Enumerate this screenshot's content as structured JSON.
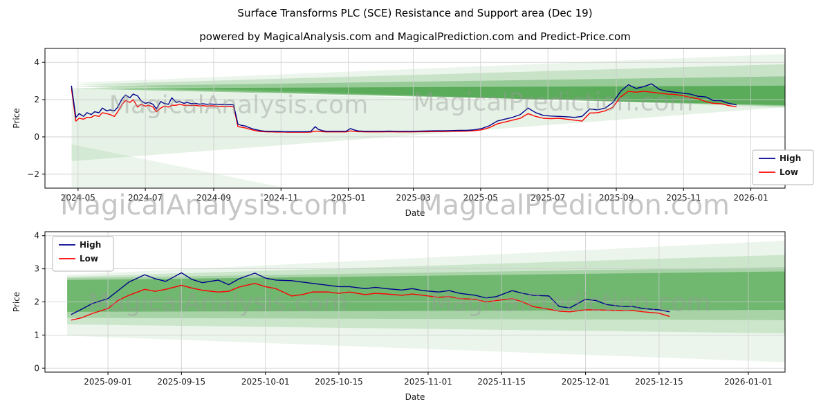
{
  "page": {
    "title": "Surface Transforms PLC (SCE) Resistance and Support area (Dec 19)",
    "subtitle": "powered by MagicalAnalysis.com and MagicalPrediction.com and Predict-Price.com"
  },
  "watermarks": {
    "analysis": "MagicalAnalysis.com",
    "prediction": "MagicalPrediction.com"
  },
  "colors": {
    "high": "#00008b",
    "low": "#ff0000",
    "band": "#008000",
    "grid": "#cccccc",
    "axis": "#000000",
    "tick_text": "#1a1a1a"
  },
  "chart_data": [
    {
      "type": "line",
      "xlabel": "Date",
      "ylabel": "Price",
      "grid": true,
      "x_domain": [
        "2024-04-01",
        "2026-02-01"
      ],
      "ylim": [
        -2.75,
        4.75
      ],
      "y_ticks": [
        -2,
        0,
        2,
        4
      ],
      "x_ticks": [
        {
          "date": "2024-05-01",
          "label": "2024-05"
        },
        {
          "date": "2024-07-01",
          "label": "2024-07"
        },
        {
          "date": "2024-09-01",
          "label": "2024-09"
        },
        {
          "date": "2024-11-01",
          "label": "2024-11"
        },
        {
          "date": "2025-01-01",
          "label": "2025-01"
        },
        {
          "date": "2025-03-01",
          "label": "2025-03"
        },
        {
          "date": "2025-05-01",
          "label": "2025-05"
        },
        {
          "date": "2025-07-01",
          "label": "2025-07"
        },
        {
          "date": "2025-09-01",
          "label": "2025-09"
        },
        {
          "date": "2025-11-01",
          "label": "2025-11"
        },
        {
          "date": "2026-01-01",
          "label": "2026-01"
        }
      ],
      "legend": {
        "position": "center-right",
        "entries": [
          {
            "label": "High",
            "key": "high"
          },
          {
            "label": "Low",
            "key": "low"
          }
        ]
      },
      "series_names": [
        "High",
        "Low"
      ],
      "points": [
        [
          "2024-04-25",
          2.75,
          2.6
        ],
        [
          "2024-04-29",
          1.05,
          0.85
        ],
        [
          "2024-05-02",
          1.25,
          1.0
        ],
        [
          "2024-05-06",
          1.1,
          0.95
        ],
        [
          "2024-05-09",
          1.3,
          1.05
        ],
        [
          "2024-05-13",
          1.2,
          1.05
        ],
        [
          "2024-05-16",
          1.35,
          1.15
        ],
        [
          "2024-05-20",
          1.3,
          1.1
        ],
        [
          "2024-05-23",
          1.55,
          1.3
        ],
        [
          "2024-05-27",
          1.4,
          1.25
        ],
        [
          "2024-05-30",
          1.45,
          1.2
        ],
        [
          "2024-06-03",
          1.4,
          1.1
        ],
        [
          "2024-06-06",
          1.6,
          1.35
        ],
        [
          "2024-06-10",
          2.05,
          1.75
        ],
        [
          "2024-06-13",
          2.25,
          1.95
        ],
        [
          "2024-06-17",
          2.1,
          1.85
        ],
        [
          "2024-06-20",
          2.3,
          2.0
        ],
        [
          "2024-06-24",
          2.2,
          1.6
        ],
        [
          "2024-06-27",
          1.95,
          1.75
        ],
        [
          "2024-07-01",
          1.8,
          1.65
        ],
        [
          "2024-07-04",
          1.85,
          1.7
        ],
        [
          "2024-07-08",
          1.75,
          1.6
        ],
        [
          "2024-07-11",
          1.5,
          1.35
        ],
        [
          "2024-07-15",
          1.9,
          1.55
        ],
        [
          "2024-07-18",
          1.8,
          1.65
        ],
        [
          "2024-07-22",
          1.75,
          1.6
        ],
        [
          "2024-07-25",
          2.1,
          1.7
        ],
        [
          "2024-07-29",
          1.85,
          1.7
        ],
        [
          "2024-08-01",
          1.9,
          1.75
        ],
        [
          "2024-08-05",
          1.8,
          1.7
        ],
        [
          "2024-08-08",
          1.85,
          1.7
        ],
        [
          "2024-08-12",
          1.78,
          1.68
        ],
        [
          "2024-08-15",
          1.8,
          1.7
        ],
        [
          "2024-08-19",
          1.76,
          1.66
        ],
        [
          "2024-08-22",
          1.78,
          1.68
        ],
        [
          "2024-08-26",
          1.75,
          1.65
        ],
        [
          "2024-08-29",
          1.77,
          1.67
        ],
        [
          "2024-09-02",
          1.75,
          1.66
        ],
        [
          "2024-09-05",
          1.73,
          1.64
        ],
        [
          "2024-09-09",
          1.75,
          1.65
        ],
        [
          "2024-09-12",
          1.72,
          1.63
        ],
        [
          "2024-09-16",
          1.73,
          1.64
        ],
        [
          "2024-09-19",
          1.72,
          1.63
        ],
        [
          "2024-09-23",
          0.68,
          0.55
        ],
        [
          "2024-09-26",
          0.62,
          0.52
        ],
        [
          "2024-09-30",
          0.58,
          0.48
        ],
        [
          "2024-10-03",
          0.5,
          0.42
        ],
        [
          "2024-10-07",
          0.42,
          0.36
        ],
        [
          "2024-10-10",
          0.38,
          0.32
        ],
        [
          "2024-10-14",
          0.33,
          0.29
        ],
        [
          "2024-10-17",
          0.31,
          0.28
        ],
        [
          "2024-10-21",
          0.3,
          0.27
        ],
        [
          "2024-10-24",
          0.3,
          0.27
        ],
        [
          "2024-10-28",
          0.29,
          0.26
        ],
        [
          "2024-10-31",
          0.29,
          0.26
        ],
        [
          "2024-11-04",
          0.28,
          0.26
        ],
        [
          "2024-11-07",
          0.28,
          0.25
        ],
        [
          "2024-11-11",
          0.28,
          0.25
        ],
        [
          "2024-11-14",
          0.28,
          0.25
        ],
        [
          "2024-11-18",
          0.28,
          0.25
        ],
        [
          "2024-11-21",
          0.28,
          0.25
        ],
        [
          "2024-11-25",
          0.28,
          0.25
        ],
        [
          "2024-11-28",
          0.29,
          0.26
        ],
        [
          "2024-12-02",
          0.55,
          0.3
        ],
        [
          "2024-12-05",
          0.4,
          0.3
        ],
        [
          "2024-12-09",
          0.33,
          0.28
        ],
        [
          "2024-12-12",
          0.3,
          0.27
        ],
        [
          "2024-12-16",
          0.3,
          0.27
        ],
        [
          "2024-12-19",
          0.3,
          0.27
        ],
        [
          "2024-12-23",
          0.3,
          0.27
        ],
        [
          "2024-12-27",
          0.3,
          0.27
        ],
        [
          "2024-12-30",
          0.3,
          0.27
        ],
        [
          "2025-01-03",
          0.45,
          0.32
        ],
        [
          "2025-01-06",
          0.38,
          0.3
        ],
        [
          "2025-01-10",
          0.32,
          0.28
        ],
        [
          "2025-01-13",
          0.31,
          0.28
        ],
        [
          "2025-01-17",
          0.3,
          0.27
        ],
        [
          "2025-01-24",
          0.3,
          0.27
        ],
        [
          "2025-01-31",
          0.3,
          0.27
        ],
        [
          "2025-02-07",
          0.31,
          0.28
        ],
        [
          "2025-02-14",
          0.3,
          0.27
        ],
        [
          "2025-02-21",
          0.3,
          0.27
        ],
        [
          "2025-02-28",
          0.3,
          0.27
        ],
        [
          "2025-03-07",
          0.31,
          0.28
        ],
        [
          "2025-03-14",
          0.32,
          0.28
        ],
        [
          "2025-03-21",
          0.33,
          0.29
        ],
        [
          "2025-03-28",
          0.33,
          0.29
        ],
        [
          "2025-04-04",
          0.34,
          0.3
        ],
        [
          "2025-04-11",
          0.35,
          0.3
        ],
        [
          "2025-04-18",
          0.35,
          0.31
        ],
        [
          "2025-04-25",
          0.38,
          0.33
        ],
        [
          "2025-05-02",
          0.45,
          0.38
        ],
        [
          "2025-05-09",
          0.6,
          0.5
        ],
        [
          "2025-05-16",
          0.85,
          0.7
        ],
        [
          "2025-05-23",
          0.95,
          0.8
        ],
        [
          "2025-05-30",
          1.05,
          0.9
        ],
        [
          "2025-06-06",
          1.2,
          1.0
        ],
        [
          "2025-06-13",
          1.55,
          1.25
        ],
        [
          "2025-06-20",
          1.3,
          1.1
        ],
        [
          "2025-06-27",
          1.15,
          1.0
        ],
        [
          "2025-07-04",
          1.12,
          0.98
        ],
        [
          "2025-07-11",
          1.1,
          1.0
        ],
        [
          "2025-07-18",
          1.08,
          0.95
        ],
        [
          "2025-07-25",
          1.05,
          0.9
        ],
        [
          "2025-08-01",
          1.1,
          0.85
        ],
        [
          "2025-08-08",
          1.5,
          1.28
        ],
        [
          "2025-08-15",
          1.45,
          1.3
        ],
        [
          "2025-08-22",
          1.55,
          1.4
        ],
        [
          "2025-08-29",
          1.85,
          1.6
        ],
        [
          "2025-09-05",
          2.45,
          2.15
        ],
        [
          "2025-09-12",
          2.8,
          2.45
        ],
        [
          "2025-09-19",
          2.6,
          2.4
        ],
        [
          "2025-09-26",
          2.7,
          2.45
        ],
        [
          "2025-10-03",
          2.85,
          2.4
        ],
        [
          "2025-10-10",
          2.55,
          2.35
        ],
        [
          "2025-10-17",
          2.45,
          2.3
        ],
        [
          "2025-10-24",
          2.4,
          2.28
        ],
        [
          "2025-10-31",
          2.35,
          2.22
        ],
        [
          "2025-11-07",
          2.3,
          2.12
        ],
        [
          "2025-11-14",
          2.18,
          2.05
        ],
        [
          "2025-11-21",
          2.15,
          1.9
        ],
        [
          "2025-11-28",
          1.95,
          1.8
        ],
        [
          "2025-12-05",
          1.95,
          1.78
        ],
        [
          "2025-12-12",
          1.8,
          1.68
        ],
        [
          "2025-12-19",
          1.72,
          1.62
        ]
      ],
      "bands": [
        {
          "alpha": 0.08,
          "points": [
            [
              0.036,
              2.9
            ],
            [
              1,
              4.45
            ],
            [
              1,
              1.55
            ]
          ]
        },
        {
          "alpha": 0.15,
          "points": [
            [
              0.036,
              2.8
            ],
            [
              1,
              3.9
            ],
            [
              1,
              1.6
            ]
          ]
        },
        {
          "alpha": 0.25,
          "points": [
            [
              0.036,
              2.7
            ],
            [
              1,
              3.25
            ],
            [
              1,
              1.65
            ]
          ]
        },
        {
          "alpha": 0.4,
          "points": [
            [
              0.036,
              2.6
            ],
            [
              1,
              2.75
            ],
            [
              1,
              1.7
            ]
          ]
        },
        {
          "alpha": 0.1,
          "points": [
            [
              0.036,
              2.6
            ],
            [
              1,
              1.6
            ],
            [
              0.036,
              -1.3
            ]
          ]
        },
        {
          "alpha": 0.08,
          "points": [
            [
              0.036,
              -0.4
            ],
            [
              0.32,
              -2.7
            ],
            [
              0.036,
              -2.7
            ]
          ]
        }
      ]
    },
    {
      "type": "line",
      "xlabel": "Date",
      "ylabel": "Price",
      "grid": true,
      "x_domain": [
        "2025-08-20",
        "2026-01-08"
      ],
      "ylim": [
        -0.12,
        4.12
      ],
      "y_ticks": [
        0,
        1,
        2,
        3,
        4
      ],
      "x_ticks": [
        {
          "date": "2025-09-01",
          "label": "2025-09-01"
        },
        {
          "date": "2025-09-15",
          "label": "2025-09-15"
        },
        {
          "date": "2025-10-01",
          "label": "2025-10-01"
        },
        {
          "date": "2025-10-15",
          "label": "2025-10-15"
        },
        {
          "date": "2025-11-01",
          "label": "2025-11-01"
        },
        {
          "date": "2025-11-15",
          "label": "2025-11-15"
        },
        {
          "date": "2025-12-01",
          "label": "2025-12-01"
        },
        {
          "date": "2025-12-15",
          "label": "2025-12-15"
        },
        {
          "date": "2026-01-01",
          "label": "2026-01-01"
        }
      ],
      "legend": {
        "position": "upper-left",
        "entries": [
          {
            "label": "High",
            "key": "high"
          },
          {
            "label": "Low",
            "key": "low"
          }
        ]
      },
      "series_names": [
        "High",
        "Low"
      ],
      "points": [
        [
          "2025-08-25",
          1.62,
          1.45
        ],
        [
          "2025-08-27",
          1.78,
          1.52
        ],
        [
          "2025-08-29",
          1.95,
          1.65
        ],
        [
          "2025-09-01",
          2.1,
          1.8
        ],
        [
          "2025-09-03",
          2.35,
          2.05
        ],
        [
          "2025-09-05",
          2.6,
          2.2
        ],
        [
          "2025-09-08",
          2.82,
          2.38
        ],
        [
          "2025-09-10",
          2.7,
          2.32
        ],
        [
          "2025-09-12",
          2.62,
          2.38
        ],
        [
          "2025-09-15",
          2.88,
          2.5
        ],
        [
          "2025-09-17",
          2.68,
          2.42
        ],
        [
          "2025-09-19",
          2.58,
          2.35
        ],
        [
          "2025-09-22",
          2.66,
          2.3
        ],
        [
          "2025-09-24",
          2.52,
          2.32
        ],
        [
          "2025-09-26",
          2.7,
          2.45
        ],
        [
          "2025-09-29",
          2.87,
          2.56
        ],
        [
          "2025-10-01",
          2.72,
          2.46
        ],
        [
          "2025-10-03",
          2.66,
          2.4
        ],
        [
          "2025-10-06",
          2.64,
          2.18
        ],
        [
          "2025-10-08",
          2.6,
          2.22
        ],
        [
          "2025-10-10",
          2.56,
          2.3
        ],
        [
          "2025-10-13",
          2.5,
          2.3
        ],
        [
          "2025-10-15",
          2.46,
          2.26
        ],
        [
          "2025-10-17",
          2.46,
          2.3
        ],
        [
          "2025-10-20",
          2.4,
          2.22
        ],
        [
          "2025-10-22",
          2.44,
          2.26
        ],
        [
          "2025-10-24",
          2.4,
          2.24
        ],
        [
          "2025-10-27",
          2.36,
          2.2
        ],
        [
          "2025-10-29",
          2.4,
          2.24
        ],
        [
          "2025-10-31",
          2.34,
          2.2
        ],
        [
          "2025-11-03",
          2.3,
          2.14
        ],
        [
          "2025-11-05",
          2.34,
          2.16
        ],
        [
          "2025-11-07",
          2.26,
          2.1
        ],
        [
          "2025-11-10",
          2.2,
          2.08
        ],
        [
          "2025-11-12",
          2.12,
          2.0
        ],
        [
          "2025-11-14",
          2.16,
          2.04
        ],
        [
          "2025-11-17",
          2.34,
          2.1
        ],
        [
          "2025-11-19",
          2.26,
          2.0
        ],
        [
          "2025-11-21",
          2.2,
          1.86
        ],
        [
          "2025-11-24",
          2.18,
          1.78
        ],
        [
          "2025-11-26",
          1.86,
          1.72
        ],
        [
          "2025-11-28",
          1.82,
          1.7
        ],
        [
          "2025-12-01",
          2.08,
          1.76
        ],
        [
          "2025-12-03",
          2.04,
          1.76
        ],
        [
          "2025-12-05",
          1.92,
          1.75
        ],
        [
          "2025-12-08",
          1.86,
          1.74
        ],
        [
          "2025-12-10",
          1.86,
          1.74
        ],
        [
          "2025-12-12",
          1.8,
          1.7
        ],
        [
          "2025-12-15",
          1.76,
          1.66
        ],
        [
          "2025-12-17",
          1.7,
          1.56
        ]
      ],
      "bands": [
        {
          "alpha": 0.08,
          "points": [
            [
              0.03,
              2.82
            ],
            [
              1,
              3.85
            ],
            [
              1,
              0.18
            ],
            [
              0.03,
              0.98
            ]
          ]
        },
        {
          "alpha": 0.13,
          "points": [
            [
              0.03,
              2.76
            ],
            [
              1,
              3.42
            ],
            [
              1,
              1.05
            ],
            [
              0.03,
              1.32
            ]
          ]
        },
        {
          "alpha": 0.18,
          "points": [
            [
              0.03,
              2.72
            ],
            [
              1,
              3.05
            ],
            [
              1,
              1.45
            ],
            [
              0.03,
              1.52
            ]
          ]
        },
        {
          "alpha": 0.33,
          "points": [
            [
              0.03,
              2.66
            ],
            [
              1,
              2.92
            ],
            [
              1,
              1.76
            ],
            [
              0.03,
              1.7
            ]
          ]
        }
      ]
    }
  ]
}
